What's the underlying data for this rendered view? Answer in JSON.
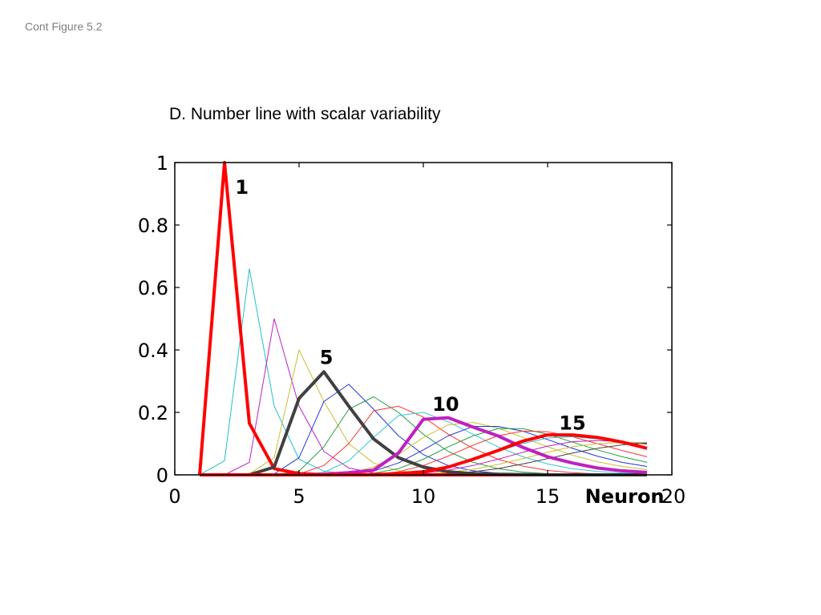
{
  "slide_label": "Cont Figure 5.2",
  "chart_data": {
    "type": "line",
    "title": "D. Number line with scalar variability",
    "xlabel": "Neuron",
    "ylabel": "",
    "xlim": [
      0,
      20
    ],
    "ylim": [
      0,
      1
    ],
    "x_ticks": [
      "0",
      "5",
      "10",
      "15",
      "20"
    ],
    "y_ticks": [
      "0",
      "0.2",
      "0.4",
      "0.6",
      "0.8",
      "1"
    ],
    "grid": false,
    "legend": "none",
    "x": [
      1,
      2,
      3,
      4,
      5,
      6,
      7,
      8,
      9,
      10,
      11,
      12,
      13,
      14,
      15,
      16,
      17,
      18,
      19
    ],
    "series": [
      {
        "number": 1,
        "color": "#ff0000",
        "emphasized": true,
        "values": [
          0,
          1.0,
          0.165,
          0.02,
          0.004,
          0.001,
          0,
          0,
          0,
          0,
          0,
          0,
          0,
          0,
          0,
          0,
          0,
          0,
          0
        ]
      },
      {
        "number": 2,
        "color": "#22c0c8",
        "emphasized": false,
        "values": [
          0,
          0.045,
          0.66,
          0.22,
          0.05,
          0.012,
          0.003,
          0.001,
          0,
          0,
          0,
          0,
          0,
          0,
          0,
          0,
          0,
          0,
          0
        ]
      },
      {
        "number": 3,
        "color": "#c020c0",
        "emphasized": false,
        "values": [
          0,
          0,
          0.04,
          0.5,
          0.22,
          0.075,
          0.022,
          0.006,
          0.002,
          0,
          0,
          0,
          0,
          0,
          0,
          0,
          0,
          0,
          0
        ]
      },
      {
        "number": 4,
        "color": "#c8c030",
        "emphasized": false,
        "values": [
          0,
          0,
          0.003,
          0.055,
          0.4,
          0.235,
          0.1,
          0.038,
          0.013,
          0.004,
          0.001,
          0,
          0,
          0,
          0,
          0,
          0,
          0,
          0
        ]
      },
      {
        "number": 5,
        "color": "#404040",
        "emphasized": true,
        "values": [
          0,
          0,
          0,
          0.025,
          0.245,
          0.33,
          0.22,
          0.115,
          0.055,
          0.025,
          0.01,
          0.004,
          0.002,
          0.001,
          0,
          0,
          0,
          0,
          0
        ]
      },
      {
        "number": 6,
        "color": "#2233dd",
        "emphasized": false,
        "values": [
          0,
          0,
          0,
          0.003,
          0.055,
          0.235,
          0.29,
          0.21,
          0.125,
          0.065,
          0.03,
          0.013,
          0.005,
          0.002,
          0.001,
          0,
          0,
          0,
          0
        ]
      },
      {
        "number": 7,
        "color": "#22a040",
        "emphasized": false,
        "values": [
          0,
          0,
          0,
          0,
          0.012,
          0.09,
          0.21,
          0.25,
          0.2,
          0.13,
          0.075,
          0.04,
          0.02,
          0.009,
          0.004,
          0.002,
          0.001,
          0,
          0
        ]
      },
      {
        "number": 8,
        "color": "#ff3030",
        "emphasized": false,
        "values": [
          0,
          0,
          0,
          0,
          0.003,
          0.03,
          0.1,
          0.205,
          0.22,
          0.185,
          0.13,
          0.085,
          0.05,
          0.028,
          0.014,
          0.007,
          0.003,
          0.001,
          0
        ]
      },
      {
        "number": 9,
        "color": "#30c8d0",
        "emphasized": false,
        "values": [
          0,
          0,
          0,
          0,
          0,
          0.008,
          0.045,
          0.12,
          0.19,
          0.2,
          0.17,
          0.13,
          0.09,
          0.058,
          0.035,
          0.02,
          0.011,
          0.006,
          0.003
        ]
      },
      {
        "number": 10,
        "color": "#c020c0",
        "emphasized": true,
        "values": [
          0,
          0,
          0,
          0,
          0,
          0.002,
          0.007,
          0.015,
          0.07,
          0.178,
          0.183,
          0.153,
          0.125,
          0.088,
          0.058,
          0.038,
          0.022,
          0.013,
          0.008
        ]
      },
      {
        "number": 11,
        "color": "#c8c030",
        "emphasized": false,
        "values": [
          0,
          0,
          0,
          0,
          0,
          0,
          0.005,
          0.025,
          0.065,
          0.12,
          0.16,
          0.168,
          0.15,
          0.12,
          0.09,
          0.063,
          0.042,
          0.027,
          0.017
        ]
      },
      {
        "number": 12,
        "color": "#2233dd",
        "emphasized": false,
        "values": [
          0,
          0,
          0,
          0,
          0,
          0,
          0.002,
          0.012,
          0.038,
          0.08,
          0.125,
          0.155,
          0.155,
          0.14,
          0.113,
          0.085,
          0.06,
          0.04,
          0.027
        ]
      },
      {
        "number": 13,
        "color": "#22a040",
        "emphasized": false,
        "values": [
          0,
          0,
          0,
          0,
          0,
          0,
          0,
          0.005,
          0.02,
          0.05,
          0.09,
          0.125,
          0.148,
          0.148,
          0.13,
          0.105,
          0.08,
          0.058,
          0.04
        ]
      },
      {
        "number": 14,
        "color": "#ff3030",
        "emphasized": false,
        "values": [
          0,
          0,
          0,
          0,
          0,
          0,
          0,
          0.002,
          0.01,
          0.03,
          0.06,
          0.095,
          0.125,
          0.14,
          0.138,
          0.122,
          0.1,
          0.078,
          0.058
        ]
      },
      {
        "number": 15,
        "color": "#ff0000",
        "emphasized": true,
        "values": [
          0,
          0,
          0,
          0,
          0,
          0,
          0,
          0.001,
          0.004,
          0.01,
          0.025,
          0.05,
          0.078,
          0.108,
          0.128,
          0.128,
          0.12,
          0.105,
          0.085
        ]
      },
      {
        "number": 16,
        "color": "#30c8d0",
        "emphasized": false,
        "values": [
          0,
          0,
          0,
          0,
          0,
          0,
          0,
          0,
          0.003,
          0.01,
          0.025,
          0.048,
          0.075,
          0.1,
          0.118,
          0.122,
          0.115,
          0.102,
          0.088
        ]
      },
      {
        "number": 17,
        "color": "#c020c0",
        "emphasized": false,
        "values": [
          0,
          0,
          0,
          0,
          0,
          0,
          0,
          0,
          0.001,
          0.005,
          0.015,
          0.03,
          0.05,
          0.072,
          0.092,
          0.106,
          0.11,
          0.106,
          0.098
        ]
      },
      {
        "number": 18,
        "color": "#c8c030",
        "emphasized": false,
        "values": [
          0,
          0,
          0,
          0,
          0,
          0,
          0,
          0,
          0,
          0.002,
          0.008,
          0.018,
          0.033,
          0.052,
          0.072,
          0.09,
          0.1,
          0.104,
          0.104
        ]
      },
      {
        "number": 19,
        "color": "#404040",
        "emphasized": false,
        "values": [
          0,
          0,
          0,
          0,
          0,
          0,
          0,
          0,
          0,
          0.001,
          0.004,
          0.01,
          0.02,
          0.035,
          0.052,
          0.07,
          0.085,
          0.096,
          0.102
        ]
      }
    ],
    "annotations": [
      {
        "text": "1",
        "x": 2.7,
        "y": 0.9
      },
      {
        "text": "5",
        "x": 6.1,
        "y": 0.355
      },
      {
        "text": "10",
        "x": 10.9,
        "y": 0.205
      },
      {
        "text": "15",
        "x": 16.0,
        "y": 0.145
      }
    ]
  }
}
